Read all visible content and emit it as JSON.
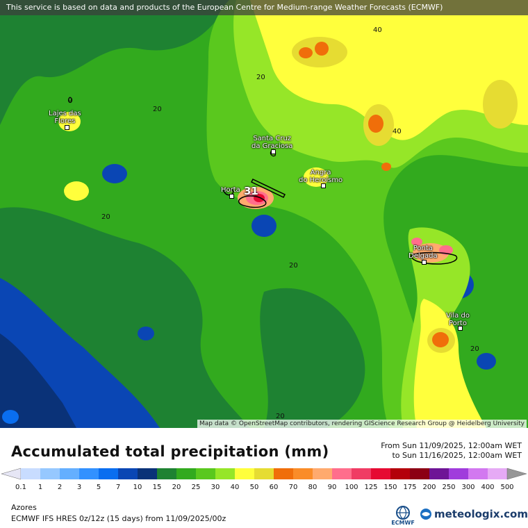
{
  "banner": {
    "text": "This service is based on data and products of the European Centre for Medium-range Weather Forecasts (ECMWF)"
  },
  "map": {
    "attribution": "Map data © OpenStreetMap contributors, rendering GIScience Research Group @ Heidelberg University",
    "cities": [
      {
        "name_line1": "Lajes das",
        "name_line2": "Flores"
      },
      {
        "name_line1": "Santa Cruz",
        "name_line2": "da Graciosa"
      },
      {
        "name_line1": "Angra",
        "name_line2": "do Heroísmo"
      },
      {
        "name_line1": "Horta",
        "name_line2": ""
      },
      {
        "name_line1": "Ponta",
        "name_line2": "Delgada"
      },
      {
        "name_line1": "Vila do",
        "name_line2": "Porto"
      }
    ],
    "max_value_label": "31",
    "contour_labels": [
      "40",
      "20",
      "20",
      "40",
      "20",
      "20",
      "20",
      "20",
      "0"
    ]
  },
  "legend": {
    "title": "Accumulated total precipitation (mm)",
    "date_from": "From Sun 11/09/2025, 12:00am WET",
    "date_to": "to Sun 11/16/2025, 12:00am WET",
    "ticks": [
      "0.1",
      "1",
      "2",
      "3",
      "5",
      "7",
      "10",
      "15",
      "20",
      "25",
      "30",
      "40",
      "50",
      "60",
      "70",
      "80",
      "90",
      "100",
      "125",
      "150",
      "175",
      "200",
      "250",
      "300",
      "400",
      "500"
    ],
    "colors": [
      "#e6e6f5",
      "#c8dcff",
      "#96c8ff",
      "#64afff",
      "#3291ff",
      "#0a6ef0",
      "#0a46b4",
      "#0a3278",
      "#1e8232",
      "#32aa1e",
      "#5ac81e",
      "#96e628",
      "#ffff3c",
      "#e6dc32",
      "#f06e0a",
      "#fa8c28",
      "#ffaa6e",
      "#ff6e8c",
      "#f03c64",
      "#e60a32",
      "#b4000a",
      "#8c0014",
      "#6e1496",
      "#a03cdc",
      "#d278f0",
      "#e6aaf5",
      "#f5e6fa",
      "#c8c8c8",
      "#969696"
    ]
  },
  "footer": {
    "region": "Azores",
    "model_info": "ECMWF IFS HRES 0z/12z (15 days) from 11/09/2025/00z",
    "ecmwf_label": "ECMWF",
    "meteologix_label": "meteologix.com"
  }
}
